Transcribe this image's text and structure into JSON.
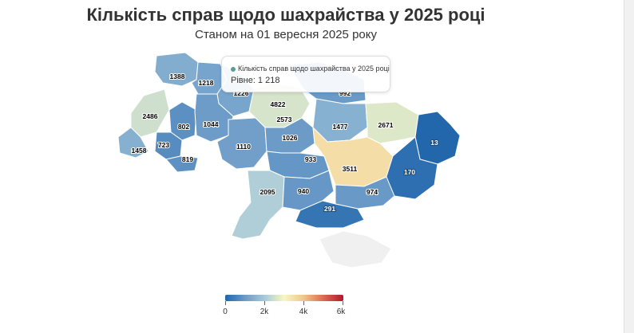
{
  "title": "Кількість справ щодо шахрайства у 2025 році",
  "subtitle": "Станом на 01 вересня 2025 року",
  "tooltip": {
    "series_name": "Кількість справ щодо шахрайства у 2025 році",
    "text": "Рівне: 1 218"
  },
  "legend": {
    "min": 0,
    "max": 6000,
    "ticks": [
      "0",
      "2k",
      "4k",
      "6k"
    ],
    "colors": [
      "#2166ac",
      "#6a9ac8",
      "#a7cad9",
      "#f7f7c0",
      "#f2c48d",
      "#d96b4e",
      "#b2182b"
    ]
  },
  "chart_data": {
    "type": "choropleth",
    "value_label": "Кількість справ щодо шахрайства у 2025 році",
    "color_scale": {
      "min": 0,
      "max": 6000
    },
    "regions": [
      {
        "label": "1388",
        "value": 1388
      },
      {
        "label": "1218",
        "value": 1218
      },
      {
        "label": "1226",
        "value": 1226
      },
      {
        "label": "4822",
        "value": 4822
      },
      {
        "label": "992",
        "value": 992
      },
      {
        "label": "2486",
        "value": 2486
      },
      {
        "label": "802",
        "value": 802
      },
      {
        "label": "1044",
        "value": 1044
      },
      {
        "label": "2573",
        "value": 2573
      },
      {
        "label": "1477",
        "value": 1477
      },
      {
        "label": "2671",
        "value": 2671
      },
      {
        "label": "13",
        "value": 13
      },
      {
        "label": "1458",
        "value": 1458
      },
      {
        "label": "723",
        "value": 723
      },
      {
        "label": "819",
        "value": 819
      },
      {
        "label": "1110",
        "value": 1110
      },
      {
        "label": "1026",
        "value": 1026
      },
      {
        "label": "933",
        "value": 933
      },
      {
        "label": "3511",
        "value": 3511
      },
      {
        "label": "170",
        "value": 170
      },
      {
        "label": "2095",
        "value": 2095
      },
      {
        "label": "940",
        "value": 940
      },
      {
        "label": "974",
        "value": 974
      },
      {
        "label": "291",
        "value": 291
      },
      {
        "label": "",
        "value": null
      }
    ]
  }
}
